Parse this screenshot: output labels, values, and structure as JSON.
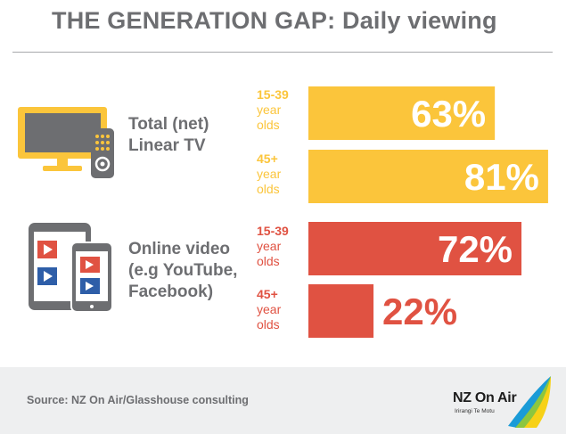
{
  "title": "THE GENERATION GAP: Daily viewing",
  "chart_data": {
    "type": "bar",
    "orientation": "horizontal",
    "title": "THE GENERATION GAP: Daily viewing",
    "groups": [
      {
        "label": "Total (net)\nLinear TV",
        "color": "#fbc53b",
        "icon": "tv-with-remote-icon",
        "bars": [
          {
            "age": "15-39",
            "unit": "year\nolds",
            "value": 63,
            "label": "63%"
          },
          {
            "age": "45+",
            "unit": "year\nolds",
            "value": 81,
            "label": "81%"
          }
        ]
      },
      {
        "label": "Online video\n(e.g YouTube,\nFacebook)",
        "color": "#e05242",
        "icon": "tablet-and-phone-video-icon",
        "bars": [
          {
            "age": "15-39",
            "unit": "year\nolds",
            "value": 72,
            "label": "72%"
          },
          {
            "age": "45+",
            "unit": "year\nolds",
            "value": 22,
            "label": "22%"
          }
        ]
      }
    ],
    "value_max": 100,
    "grid": false,
    "legend": "none"
  },
  "footer": {
    "source": "Source: NZ On Air/Glasshouse consulting",
    "logo_name": "NZ On Air",
    "logo_tagline": "Irirangi Te Motu"
  },
  "colors": {
    "tv": "#fbc53b",
    "online": "#e05242",
    "text_grey": "#6d6e71",
    "footer_bg": "#eeeff0"
  }
}
